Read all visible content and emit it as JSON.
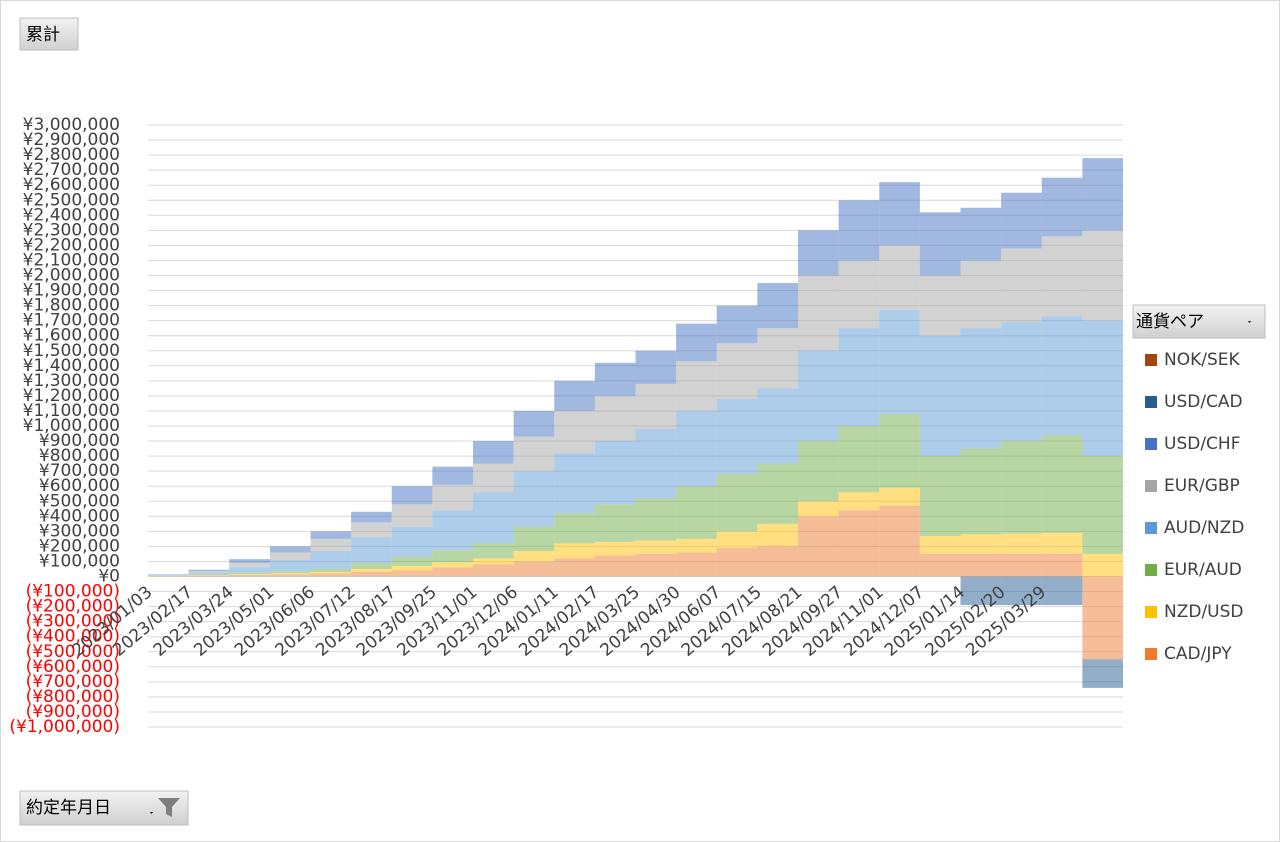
{
  "chart_data": {
    "type": "stacked_bar",
    "value_field": "累計",
    "legend_title": "通貨ペア",
    "axis_field": "約定年月日",
    "legend_position": "right",
    "grid": true,
    "negative_tick_color": "#ff0000",
    "categories": [
      "2023/01/03",
      "2023/02/17",
      "2023/03/24",
      "2023/05/01",
      "2023/06/06",
      "2023/07/12",
      "2023/08/17",
      "2023/09/25",
      "2023/11/01",
      "2023/12/06",
      "2024/01/11",
      "2024/02/17",
      "2024/03/25",
      "2024/04/30",
      "2024/06/07",
      "2024/07/15",
      "2024/08/21",
      "2024/09/27",
      "2024/11/01",
      "2024/12/07",
      "2025/01/14",
      "2025/02/20",
      "2025/03/29",
      null
    ],
    "series": [
      {
        "name": "NOK/SEK",
        "color": "#9e480e",
        "values": [
          0,
          0,
          0,
          0,
          0,
          0,
          0,
          0,
          0,
          0,
          0,
          0,
          0,
          0,
          0,
          0,
          0,
          0,
          0,
          0,
          0,
          0,
          0,
          0
        ]
      },
      {
        "name": "USD/CAD",
        "color": "#255e91",
        "values": [
          0,
          0,
          0,
          0,
          0,
          0,
          0,
          0,
          0,
          0,
          0,
          0,
          0,
          0,
          0,
          0,
          0,
          0,
          0,
          0,
          -190000,
          -190000,
          -190000,
          -190000
        ]
      },
      {
        "name": "USD/CHF",
        "color": "#4472c4",
        "values": [
          3000,
          10000,
          25000,
          40000,
          50000,
          70000,
          120000,
          120000,
          150000,
          170000,
          200000,
          220000,
          220000,
          250000,
          250000,
          300000,
          300000,
          400000,
          420000,
          420000,
          350000,
          370000,
          390000,
          480000
        ]
      },
      {
        "name": "EUR/GBP",
        "color": "#a5a5a5",
        "values": [
          4000,
          10000,
          30000,
          50000,
          80000,
          100000,
          150000,
          170000,
          190000,
          230000,
          280000,
          300000,
          300000,
          330000,
          370000,
          400000,
          500000,
          450000,
          430000,
          400000,
          450000,
          490000,
          530000,
          600000
        ]
      },
      {
        "name": "AUD/NZD",
        "color": "#5b9bd5",
        "values": [
          4000,
          13000,
          35000,
          75000,
          120000,
          170000,
          200000,
          265000,
          340000,
          370000,
          400000,
          420000,
          460000,
          500000,
          500000,
          500000,
          600000,
          650000,
          690000,
          800000,
          800000,
          790000,
          790000,
          900000
        ]
      },
      {
        "name": "EUR/AUD",
        "color": "#70ad47",
        "values": [
          1000,
          4000,
          10000,
          13000,
          20000,
          40000,
          60000,
          80000,
          100000,
          160000,
          200000,
          250000,
          280000,
          350000,
          380000,
          400000,
          400000,
          440000,
          490000,
          530000,
          570000,
          615000,
          650000,
          650000
        ]
      },
      {
        "name": "NZD/USD",
        "color": "#ffc000",
        "values": [
          1000,
          3000,
          5000,
          7000,
          10000,
          20000,
          30000,
          35000,
          40000,
          70000,
          100000,
          90000,
          90000,
          90000,
          110000,
          150000,
          100000,
          120000,
          120000,
          120000,
          130000,
          135000,
          140000,
          150000
        ]
      },
      {
        "name": "CAD/JPY",
        "color": "#ed7d31",
        "values": [
          2000,
          5000,
          10000,
          15000,
          20000,
          30000,
          40000,
          60000,
          80000,
          100000,
          120000,
          140000,
          150000,
          160000,
          190000,
          200000,
          400000,
          440000,
          470000,
          150000,
          150000,
          150000,
          150000,
          -550000
        ]
      }
    ],
    "ylim": [
      -1000000,
      3000000
    ],
    "yticks": [
      {
        "value": 3000000,
        "label": "¥3,000,000"
      },
      {
        "value": 2900000,
        "label": "¥2,900,000"
      },
      {
        "value": 2800000,
        "label": "¥2,800,000"
      },
      {
        "value": 2700000,
        "label": "¥2,700,000"
      },
      {
        "value": 2600000,
        "label": "¥2,600,000"
      },
      {
        "value": 2500000,
        "label": "¥2,500,000"
      },
      {
        "value": 2400000,
        "label": "¥2,400,000"
      },
      {
        "value": 2300000,
        "label": "¥2,300,000"
      },
      {
        "value": 2200000,
        "label": "¥2,200,000"
      },
      {
        "value": 2100000,
        "label": "¥2,100,000"
      },
      {
        "value": 2000000,
        "label": "¥2,000,000"
      },
      {
        "value": 1900000,
        "label": "¥1,900,000"
      },
      {
        "value": 1800000,
        "label": "¥1,800,000"
      },
      {
        "value": 1700000,
        "label": "¥1,700,000"
      },
      {
        "value": 1600000,
        "label": "¥1,600,000"
      },
      {
        "value": 1500000,
        "label": "¥1,500,000"
      },
      {
        "value": 1400000,
        "label": "¥1,400,000"
      },
      {
        "value": 1300000,
        "label": "¥1,300,000"
      },
      {
        "value": 1200000,
        "label": "¥1,200,000"
      },
      {
        "value": 1100000,
        "label": "¥1,100,000"
      },
      {
        "value": 1000000,
        "label": "¥1,000,000"
      },
      {
        "value": 900000,
        "label": "¥900,000"
      },
      {
        "value": 800000,
        "label": "¥800,000"
      },
      {
        "value": 700000,
        "label": "¥700,000"
      },
      {
        "value": 600000,
        "label": "¥600,000"
      },
      {
        "value": 500000,
        "label": "¥500,000"
      },
      {
        "value": 400000,
        "label": "¥400,000"
      },
      {
        "value": 300000,
        "label": "¥300,000"
      },
      {
        "value": 200000,
        "label": "¥200,000"
      },
      {
        "value": 100000,
        "label": "¥100,000"
      },
      {
        "value": 0,
        "label": "¥0"
      },
      {
        "value": -100000,
        "label": "(¥100,000)"
      },
      {
        "value": -200000,
        "label": "(¥200,000)"
      },
      {
        "value": -300000,
        "label": "(¥300,000)"
      },
      {
        "value": -400000,
        "label": "(¥400,000)"
      },
      {
        "value": -500000,
        "label": "(¥500,000)"
      },
      {
        "value": -600000,
        "label": "(¥600,000)"
      },
      {
        "value": -700000,
        "label": "(¥700,000)"
      },
      {
        "value": -800000,
        "label": "(¥800,000)"
      },
      {
        "value": -900000,
        "label": "(¥900,000)"
      },
      {
        "value": -1000000,
        "label": "(¥1,000,000)"
      }
    ]
  }
}
